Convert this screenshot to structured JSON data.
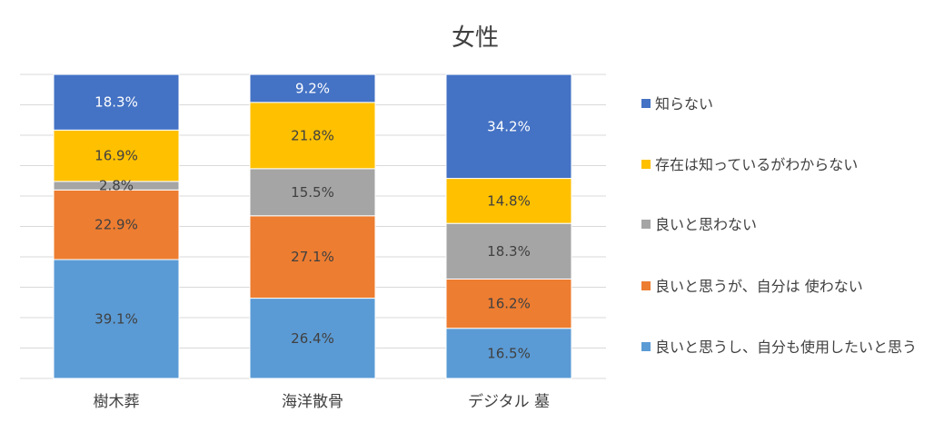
{
  "chart_data": {
    "type": "bar",
    "stacked": true,
    "normalized_percent": true,
    "title": "女性",
    "xlabel": "",
    "ylabel": "",
    "ylim": [
      0,
      100
    ],
    "grid": true,
    "legend_position": "right",
    "categories": [
      "樹木葬",
      "海洋散骨",
      "デジタル 墓"
    ],
    "series": [
      {
        "name": "良いと思うし、自分も使用したいと思う",
        "color": "#5B9BD5",
        "label_color": "#404040",
        "values": [
          39.1,
          26.4,
          16.5
        ],
        "labels": [
          "39.1%",
          "26.4%",
          "16.5%"
        ]
      },
      {
        "name": "良いと思うが、自分は 使わない",
        "color": "#ED7D31",
        "label_color": "#404040",
        "values": [
          22.9,
          27.1,
          16.2
        ],
        "labels": [
          "22.9%",
          "27.1%",
          "16.2%"
        ]
      },
      {
        "name": "良いと思わない",
        "color": "#A5A5A5",
        "label_color": "#404040",
        "values": [
          2.8,
          15.5,
          18.3
        ],
        "labels": [
          "2.8%",
          "15.5%",
          "18.3%"
        ]
      },
      {
        "name": "存在は知っているがわからない",
        "color": "#FFC000",
        "label_color": "#404040",
        "values": [
          16.9,
          21.8,
          14.8
        ],
        "labels": [
          "16.9%",
          "21.8%",
          "14.8%"
        ]
      },
      {
        "name": "知らない",
        "color": "#4472C4",
        "label_color": "#ffffff",
        "values": [
          18.3,
          9.2,
          34.2
        ],
        "labels": [
          "18.3%",
          "9.2%",
          "34.2%"
        ]
      }
    ],
    "legend_order": [
      4,
      3,
      2,
      1,
      0
    ]
  }
}
